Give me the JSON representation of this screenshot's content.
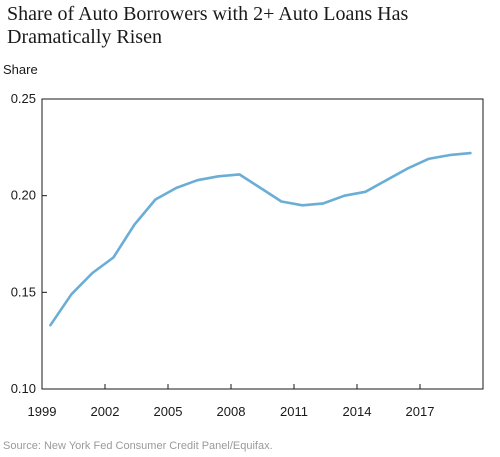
{
  "chart_data": {
    "type": "line",
    "title": "Share of Auto Borrowers with 2+ Auto Loans Has Dramatically Risen",
    "ylabel": "Share",
    "xlabel": "",
    "source": "Source: New York Fed Consumer Credit Panel/Equifax.",
    "ylim": [
      0.1,
      0.25
    ],
    "yticks": [
      "0.10",
      "0.15",
      "0.20",
      "0.25"
    ],
    "xlim": [
      1999,
      2020
    ],
    "xticks": [
      "1999",
      "2002",
      "2005",
      "2008",
      "2011",
      "2014",
      "2017"
    ],
    "grid": false,
    "line_color": "#6aaed6",
    "series": [
      {
        "x": [
          1999.4,
          2000.4,
          2001.4,
          2002.4,
          2003.4,
          2004.4,
          2005.4,
          2006.4,
          2007.4,
          2008.4,
          2009.4,
          2010.4,
          2011.4,
          2012.4,
          2013.4,
          2014.4,
          2015.4,
          2016.4,
          2017.4,
          2018.4,
          2019.4
        ],
        "values": [
          0.133,
          0.149,
          0.16,
          0.168,
          0.185,
          0.198,
          0.204,
          0.208,
          0.21,
          0.211,
          0.204,
          0.197,
          0.195,
          0.196,
          0.2,
          0.202,
          0.208,
          0.214,
          0.219,
          0.221,
          0.222
        ]
      }
    ]
  }
}
